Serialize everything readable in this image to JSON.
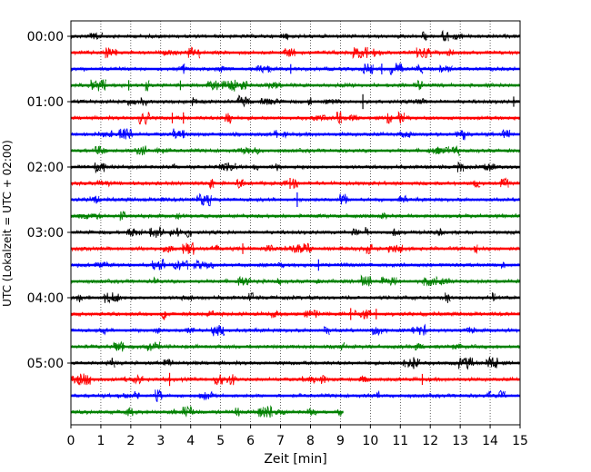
{
  "chart_data": {
    "type": "line",
    "title": "",
    "xlabel": "Zeit  [min]",
    "ylabel": "UTC (Lokalzeit = UTC + 02:00)",
    "xlim": [
      0,
      15
    ],
    "x_ticks": [
      0,
      1,
      2,
      3,
      4,
      5,
      6,
      7,
      8,
      9,
      10,
      11,
      12,
      13,
      14,
      15
    ],
    "x_tick_labels": [
      "0",
      "1",
      "2",
      "3",
      "4",
      "5",
      "6",
      "7",
      "8",
      "9",
      "10",
      "11",
      "12",
      "13",
      "14",
      "15"
    ],
    "y_tick_labels": [
      "00:00",
      "01:00",
      "02:00",
      "03:00",
      "04:00",
      "05:00"
    ],
    "trace_interval_min": 15,
    "grid": "x-dotted",
    "colors": [
      "#000000",
      "#ff0000",
      "#0000ff",
      "#008000"
    ],
    "series": [
      {
        "start": "00:00",
        "end_min": 15,
        "color": "#000000"
      },
      {
        "start": "00:15",
        "end_min": 15,
        "color": "#ff0000"
      },
      {
        "start": "00:30",
        "end_min": 15,
        "color": "#0000ff"
      },
      {
        "start": "00:45",
        "end_min": 15,
        "color": "#008000"
      },
      {
        "start": "01:00",
        "end_min": 15,
        "color": "#000000"
      },
      {
        "start": "01:15",
        "end_min": 15,
        "color": "#ff0000"
      },
      {
        "start": "01:30",
        "end_min": 15,
        "color": "#0000ff"
      },
      {
        "start": "01:45",
        "end_min": 15,
        "color": "#008000"
      },
      {
        "start": "02:00",
        "end_min": 15,
        "color": "#000000"
      },
      {
        "start": "02:15",
        "end_min": 15,
        "color": "#ff0000"
      },
      {
        "start": "02:30",
        "end_min": 15,
        "color": "#0000ff"
      },
      {
        "start": "02:45",
        "end_min": 15,
        "color": "#008000"
      },
      {
        "start": "03:00",
        "end_min": 15,
        "color": "#000000"
      },
      {
        "start": "03:15",
        "end_min": 15,
        "color": "#ff0000"
      },
      {
        "start": "03:30",
        "end_min": 15,
        "color": "#0000ff"
      },
      {
        "start": "03:45",
        "end_min": 15,
        "color": "#008000"
      },
      {
        "start": "04:00",
        "end_min": 15,
        "color": "#000000"
      },
      {
        "start": "04:15",
        "end_min": 15,
        "color": "#ff0000"
      },
      {
        "start": "04:30",
        "end_min": 15,
        "color": "#0000ff"
      },
      {
        "start": "04:45",
        "end_min": 15,
        "color": "#008000"
      },
      {
        "start": "05:00",
        "end_min": 15,
        "color": "#000000"
      },
      {
        "start": "05:15",
        "end_min": 15,
        "color": "#ff0000"
      },
      {
        "start": "05:30",
        "end_min": 15,
        "color": "#0000ff"
      },
      {
        "start": "05:45",
        "end_min": 9.1,
        "color": "#008000"
      }
    ]
  }
}
